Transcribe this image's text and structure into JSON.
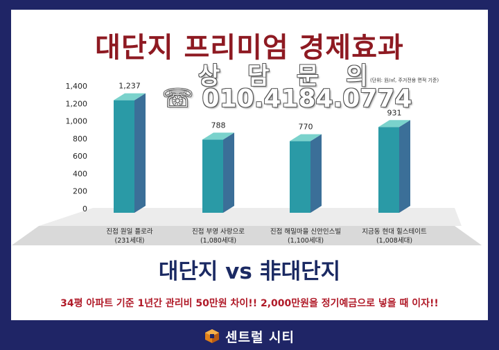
{
  "title": "대단지 프리미엄 경제효과",
  "consult_label": "상 담 문 의",
  "phone": "☏ 010.4184.0774",
  "unit_note": "(단위: 원/㎡, 주거전용 면적 기준)",
  "subtitle": "대단지 vs 非대단지",
  "footnote": "34평 아파트 기준 1년간 관리비 50만원 차이!!  2,000만원을 정기예금으로 넣을 때 이자!!",
  "brand_name": "센트럴 시티",
  "colors": {
    "frame": "#1f2566",
    "title": "#8e1a22",
    "bar_front": "#2a9aa6",
    "bar_side": "#3b6f98",
    "bar_top": "#7ad2cc",
    "subtitle": "#1b2a63",
    "footnote": "#b01a28",
    "brand_logo": "#e0801a"
  },
  "chart_data": {
    "type": "bar",
    "categories": [
      [
        "진접 원일 플로라",
        "(231세대)"
      ],
      [
        "진접 부영 사랑으로",
        "(1,080세대)"
      ],
      [
        "진접 해밀마을 신안인스빌",
        "(1,100세대)"
      ],
      [
        "지금동 현대 힐스테이트",
        "(1,008세대)"
      ]
    ],
    "values": [
      1237,
      788,
      770,
      931
    ],
    "value_labels": [
      "1,237",
      "788",
      "770",
      "931"
    ],
    "yticks": [
      "0",
      "200",
      "400",
      "600",
      "800",
      "1,000",
      "1,200",
      "1,400"
    ],
    "ylim": [
      0,
      1400
    ]
  }
}
